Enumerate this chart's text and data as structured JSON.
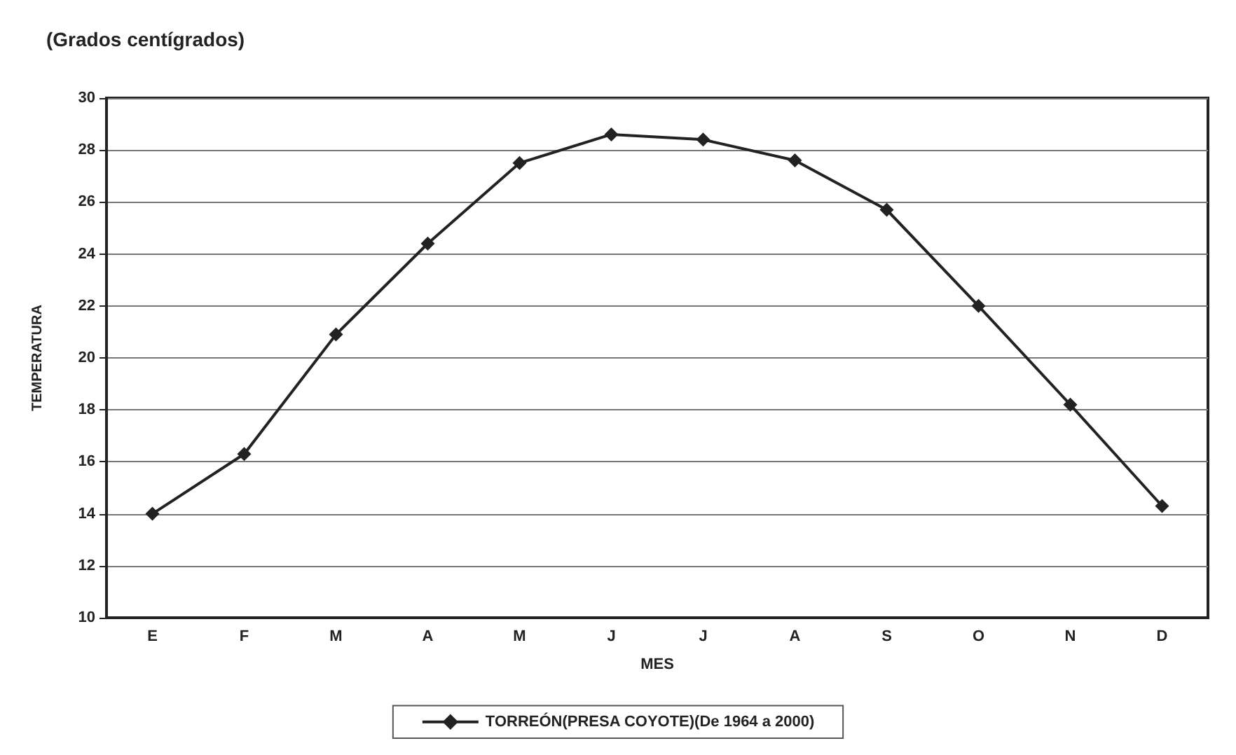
{
  "chart_data": {
    "type": "line",
    "title": "(Grados centígrados)",
    "xlabel": "MES",
    "ylabel": "TEMPERATURA",
    "categories": [
      "E",
      "F",
      "M",
      "A",
      "M",
      "J",
      "J",
      "A",
      "S",
      "O",
      "N",
      "D"
    ],
    "series": [
      {
        "name": "TORREÓN(PRESA COYOTE)(De 1964 a 2000)",
        "color": "#222222",
        "values": [
          14.0,
          16.3,
          20.9,
          24.4,
          27.5,
          28.6,
          28.4,
          27.6,
          25.7,
          22.0,
          18.2,
          14.3
        ]
      }
    ],
    "ylim": [
      10,
      30
    ],
    "yticks": [
      10,
      12,
      14,
      16,
      18,
      20,
      22,
      24,
      26,
      28,
      30
    ],
    "grid": "y",
    "legend": "bottom",
    "marker": "diamond",
    "line_style": "solid"
  }
}
